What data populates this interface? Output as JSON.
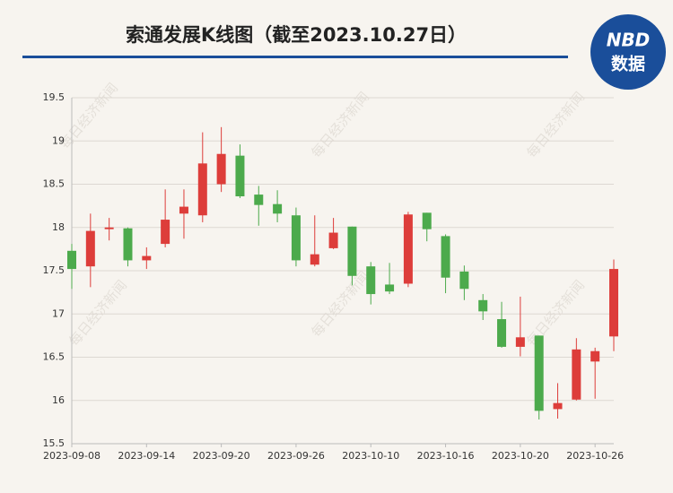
{
  "chart_data": {
    "type": "candlestick",
    "title": "索通发展K线图（截至2023.10.27日）",
    "logo": {
      "top": "NBD",
      "bottom": "数据"
    },
    "watermark": "每日经济新闻",
    "categories": [
      "2023-09-08",
      null,
      null,
      null,
      "2023-09-14",
      null,
      null,
      null,
      "2023-09-20",
      null,
      null,
      null,
      "2023-09-26",
      null,
      null,
      null,
      "2023-10-10",
      null,
      null,
      null,
      "2023-10-16",
      null,
      null,
      null,
      "2023-10-20",
      null,
      null,
      null,
      "2023-10-26",
      null
    ],
    "open": [
      17.73,
      17.55,
      17.98,
      17.99,
      17.62,
      17.81,
      18.16,
      18.14,
      18.5,
      18.83,
      18.38,
      18.27,
      18.14,
      17.57,
      17.76,
      18.01,
      17.55,
      17.34,
      17.35,
      18.17,
      17.9,
      17.49,
      17.16,
      16.94,
      16.62,
      16.75,
      15.9,
      16.01,
      16.45,
      16.74
    ],
    "high": [
      17.81,
      18.16,
      18.11,
      18.0,
      17.77,
      18.44,
      18.44,
      19.1,
      19.16,
      18.96,
      18.48,
      18.43,
      18.23,
      18.14,
      18.11,
      18.01,
      17.6,
      17.59,
      18.18,
      18.17,
      17.92,
      17.56,
      17.23,
      17.14,
      17.2,
      16.75,
      16.2,
      16.72,
      16.61,
      17.63
    ],
    "low": [
      17.29,
      17.31,
      17.85,
      17.55,
      17.52,
      17.77,
      17.87,
      18.06,
      18.41,
      18.34,
      18.02,
      18.06,
      17.55,
      17.55,
      17.75,
      17.33,
      17.11,
      17.23,
      17.31,
      17.84,
      17.24,
      17.16,
      16.93,
      16.61,
      16.51,
      15.78,
      15.79,
      16.0,
      16.02,
      16.57
    ],
    "close": [
      17.52,
      17.96,
      18.0,
      17.62,
      17.67,
      18.09,
      18.24,
      18.74,
      18.85,
      18.36,
      18.26,
      18.16,
      17.62,
      17.69,
      17.94,
      17.44,
      17.23,
      17.26,
      18.15,
      17.98,
      17.42,
      17.29,
      17.03,
      16.62,
      16.73,
      15.88,
      15.97,
      16.59,
      16.57,
      17.52
    ],
    "up_color": "#dd3d3a",
    "down_color": "#4caa4c",
    "ylim": [
      15.5,
      19.5
    ],
    "yticks": [
      15.5,
      16,
      16.5,
      17,
      17.5,
      18,
      18.5,
      19,
      19.5
    ],
    "grid": true
  }
}
